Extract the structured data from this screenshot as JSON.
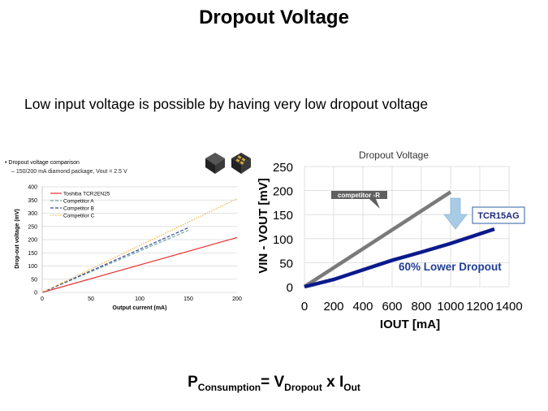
{
  "slide": {
    "title": "Dropout Voltage",
    "subtitle": "Low input voltage is possible by having very low dropout voltage"
  },
  "left_chart_header": {
    "bullet": "•  Dropout voltage comparison",
    "sub": "–   150/200 mA diamond package, Vout = 2.5 V"
  },
  "formula": {
    "p": "P",
    "p_sub": "Consumption",
    "eq": "= V",
    "v_sub": "Dropout",
    "x": " x I",
    "i_sub": "Out"
  },
  "chart_data": [
    {
      "type": "line",
      "title": "",
      "xlabel": "Output current (mA)",
      "ylabel": "Drop-out voltage (mV)",
      "xlim": [
        0,
        200
      ],
      "ylim": [
        0,
        400
      ],
      "xticks": [
        0,
        50,
        100,
        150,
        200
      ],
      "yticks": [
        0,
        50,
        100,
        150,
        200,
        250,
        300,
        350,
        400
      ],
      "grid": true,
      "legend": "top-left",
      "series": [
        {
          "name": "Toshiba TCR2EN25",
          "color": "#e8322f",
          "dash": "solid",
          "x": [
            0,
            200
          ],
          "y": [
            0,
            208
          ]
        },
        {
          "name": "Competitor A",
          "color": "#6fa8a8",
          "dash": "dashed",
          "x": [
            0,
            150
          ],
          "y": [
            0,
            235
          ]
        },
        {
          "name": "Competitor B",
          "color": "#3b4a8f",
          "dash": "dashed",
          "x": [
            0,
            150
          ],
          "y": [
            0,
            245
          ]
        },
        {
          "name": "Competitor C",
          "color": "#f2b33d",
          "dash": "dotted",
          "x": [
            0,
            200
          ],
          "y": [
            0,
            355
          ]
        }
      ]
    },
    {
      "type": "line",
      "title": "Dropout Voltage",
      "xlabel": "IOUT [mA]",
      "ylabel": "VIN - VOUT [mV]",
      "xlim": [
        0,
        1400
      ],
      "ylim": [
        0,
        250
      ],
      "xticks": [
        0,
        200,
        400,
        600,
        800,
        1000,
        1200,
        1400
      ],
      "xtick_labels": [
        "0",
        "200",
        "400",
        "600",
        "800",
        "1000",
        "1200",
        "1400"
      ],
      "yticks": [
        0,
        50,
        100,
        150,
        200,
        250
      ],
      "grid": true,
      "series": [
        {
          "name": "competitor -R",
          "color": "#7a7a7a",
          "x": [
            0,
            1000
          ],
          "y": [
            0,
            197
          ]
        },
        {
          "name": "TCR15AG",
          "color": "#0b1a8c",
          "x": [
            0,
            200,
            400,
            600,
            800,
            1000,
            1300
          ],
          "y": [
            0,
            15,
            35,
            55,
            72,
            90,
            120
          ]
        }
      ],
      "annotations": {
        "competitor_label": "competitor -R",
        "product_label": "TCR15AG",
        "lower_dropout_label": "60% Lower Dropout"
      }
    }
  ],
  "colors": {
    "accent_arrow": "#a8cbe6",
    "label_box_border": "#2e5fa8",
    "lower_dropout_text": "#1f3f95"
  },
  "icons": [
    "chip-top-icon",
    "chip-bottom-icon"
  ]
}
